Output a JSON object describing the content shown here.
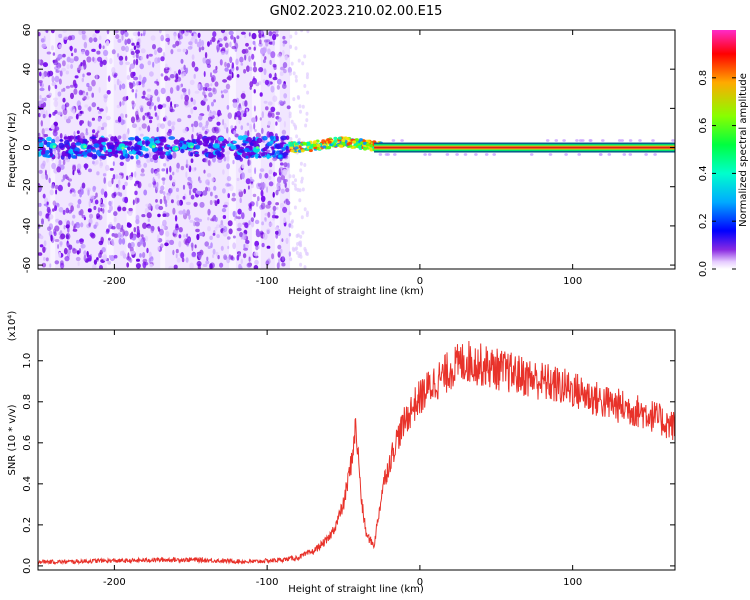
{
  "figure": {
    "title": "GN02.2023.210.02.00.E15"
  },
  "colors": {
    "snr_line": "#e8322a",
    "spectrogram_sparse": "#7a10f0",
    "spectrogram_band_core": "#d81e1e",
    "axis": "#000000",
    "colorbar_stops": [
      "#ff2ac8",
      "#ff0000",
      "#ffaa00",
      "#88ff00",
      "#00ff40",
      "#00ffcc",
      "#00aaff",
      "#0000ff",
      "#8a2be2",
      "#e6ccff",
      "#ffffff"
    ]
  },
  "chart_data": [
    {
      "type": "heatmap",
      "title": "GN02.2023.210.02.00.E15",
      "xlabel": "Height of straight line (km)",
      "ylabel": "Frequency (Hz)",
      "xlim": [
        -250,
        167
      ],
      "ylim": [
        -62,
        60
      ],
      "xticks": [
        -200,
        -100,
        0,
        100
      ],
      "xtick_labels": [
        "-200",
        "-100",
        "0",
        "100"
      ],
      "yticks": [
        -60,
        -40,
        -20,
        0,
        20,
        40,
        60
      ],
      "ytick_labels": [
        "-60",
        "-40",
        "-20",
        "0",
        "20",
        "40",
        "60"
      ],
      "grid": false,
      "colorbar": {
        "label": "Normalized spectral amplitude",
        "range": [
          0,
          1
        ],
        "ticks": [
          0.0,
          0.2,
          0.4,
          0.6,
          0.8
        ],
        "tick_labels": [
          "0.0",
          "0.2",
          "0.4",
          "0.6",
          "0.8"
        ]
      },
      "description_values": {
        "broadband_noise_x_range": [
          -250,
          -85
        ],
        "narrow_band_start_x": -85,
        "narrow_band_center_frequency": 0,
        "narrow_band_peak_amplitude": 0.9
      }
    },
    {
      "type": "line",
      "xlabel": "Height of straight line (km)",
      "ylabel": "SNR (10 * v/v)",
      "y_multiplier_label": "(x10⁴)",
      "xlim": [
        -250,
        167
      ],
      "ylim": [
        -0.02,
        1.15
      ],
      "xticks": [
        -200,
        -100,
        0,
        100
      ],
      "xtick_labels": [
        "-200",
        "-100",
        "0",
        "100"
      ],
      "yticks": [
        0.0,
        0.2,
        0.4,
        0.6,
        0.8,
        1.0
      ],
      "ytick_labels": [
        "0.0",
        "0.2",
        "0.4",
        "0.6",
        "0.8",
        "1.0"
      ],
      "grid": false,
      "series": [
        {
          "x": [
            -250,
            -230,
            -210,
            -190,
            -170,
            -150,
            -130,
            -110,
            -90,
            -80,
            -70,
            -60,
            -55,
            -50,
            -45,
            -42,
            -40,
            -38,
            -35,
            -32,
            -30,
            -27,
            -24,
            -20,
            -15,
            -10,
            -5,
            0,
            5,
            10,
            15,
            20,
            25,
            30,
            35,
            40,
            50,
            60,
            70,
            80,
            90,
            100,
            110,
            120,
            130,
            140,
            150,
            160,
            167
          ],
          "y": [
            0.02,
            0.02,
            0.025,
            0.025,
            0.03,
            0.03,
            0.025,
            0.02,
            0.03,
            0.04,
            0.07,
            0.13,
            0.2,
            0.3,
            0.5,
            0.68,
            0.5,
            0.3,
            0.15,
            0.12,
            0.1,
            0.25,
            0.4,
            0.5,
            0.62,
            0.7,
            0.77,
            0.82,
            0.86,
            0.9,
            0.92,
            0.96,
            0.98,
            1.0,
            0.99,
            0.98,
            0.96,
            0.94,
            0.92,
            0.9,
            0.88,
            0.86,
            0.83,
            0.8,
            0.78,
            0.76,
            0.74,
            0.7,
            0.68
          ]
        }
      ]
    }
  ]
}
